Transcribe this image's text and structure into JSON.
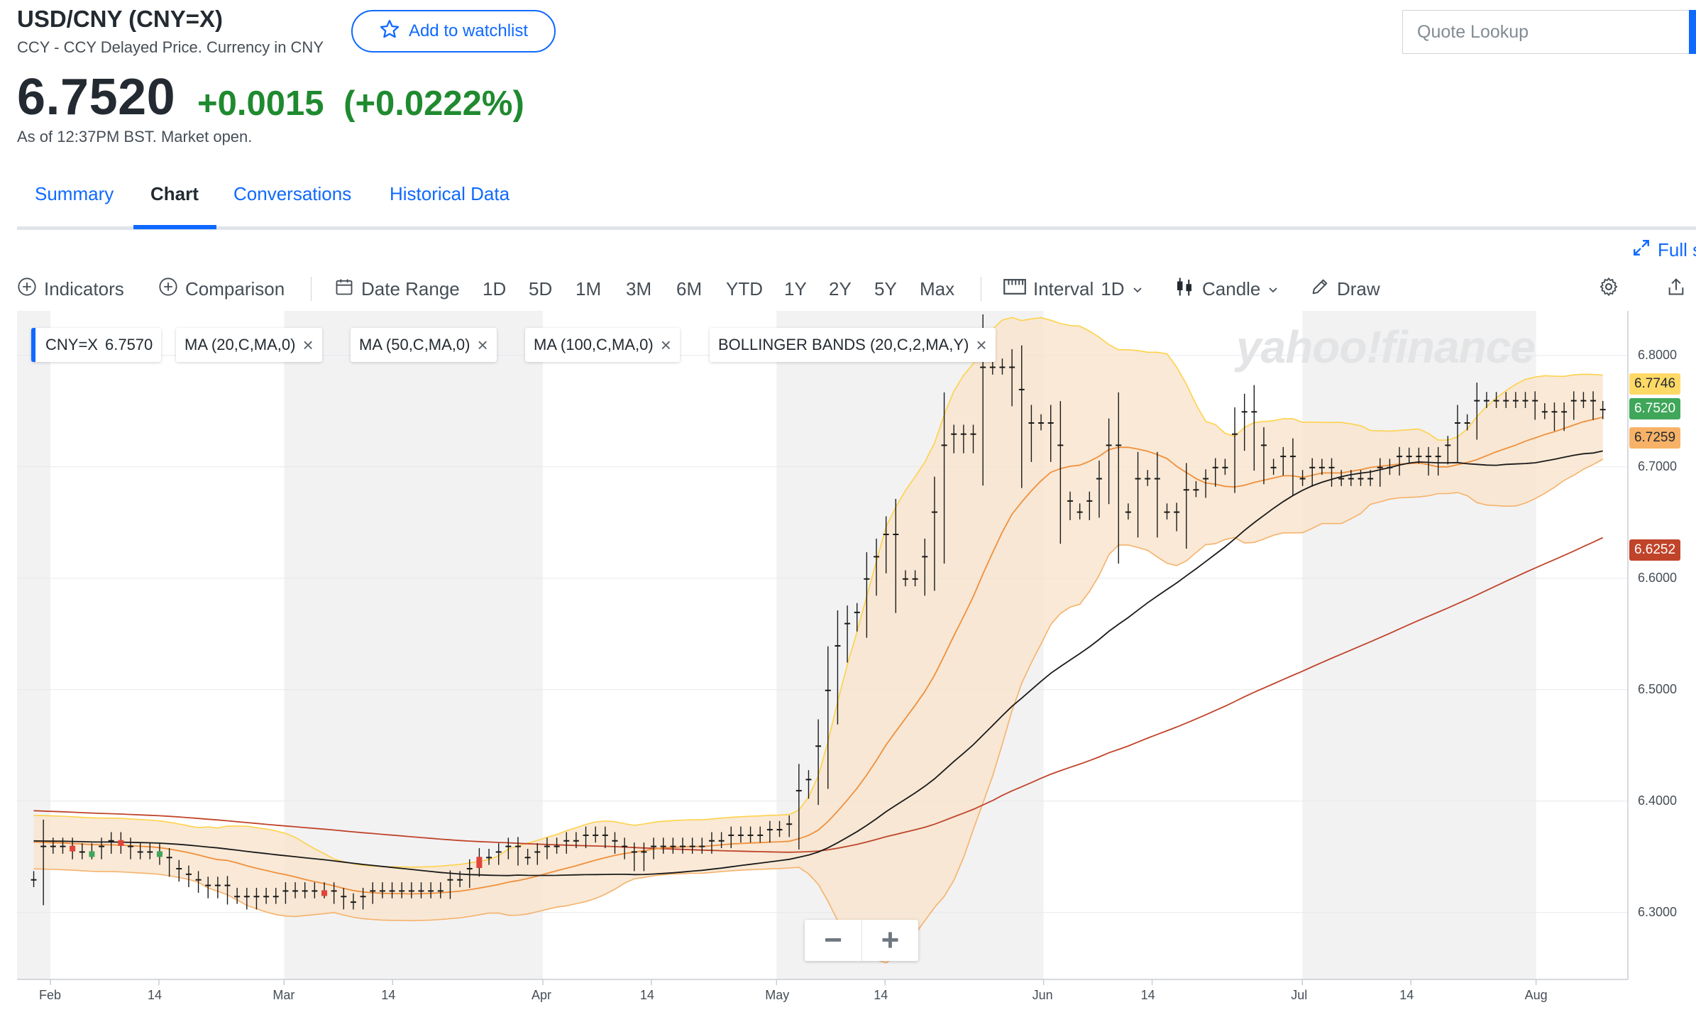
{
  "header": {
    "title": "USD/CNY (CNY=X)",
    "subtitle": "CCY - CCY Delayed Price. Currency in CNY",
    "watchlist_label": "Add to watchlist",
    "price": "6.7520",
    "change": "+0.0015",
    "change_pct": "(+0.0222%)",
    "as_of": "As of 12:37PM BST. Market open.",
    "search_placeholder": "Quote Lookup"
  },
  "tabs": [
    {
      "label": "Summary",
      "active": false
    },
    {
      "label": "Chart",
      "active": true
    },
    {
      "label": "Conversations",
      "active": false
    },
    {
      "label": "Historical Data",
      "active": false
    }
  ],
  "fullscreen_label": "Full s",
  "toolbar": {
    "indicators": "Indicators",
    "comparison": "Comparison",
    "date_range": "Date Range",
    "ranges": [
      "1D",
      "5D",
      "1M",
      "3M",
      "6M",
      "YTD",
      "1Y",
      "2Y",
      "5Y",
      "Max"
    ],
    "interval_label": "Interval",
    "interval_value": "1D",
    "chart_type": "Candle",
    "draw": "Draw"
  },
  "chips": {
    "symbol": "CNY=X",
    "symbol_value": "6.7570",
    "ma20": "MA (20,C,MA,0)",
    "ma50": "MA (50,C,MA,0)",
    "ma100": "MA (100,C,MA,0)",
    "bollinger": "BOLLINGER BANDS (20,C,2,MA,Y)",
    "close_glyph": "×"
  },
  "watermark": "yahoo!finance",
  "zoom": {
    "minus": "−",
    "plus": "+"
  },
  "price_tags": [
    {
      "label": "6.7746",
      "value": 6.7746,
      "color": "#ffd966"
    },
    {
      "label": "6.7520",
      "value": 6.752,
      "color": "#3fa65a",
      "text_color": "#ffffff"
    },
    {
      "label": "6.7259",
      "value": 6.7259,
      "color": "#f7b267"
    },
    {
      "label": "6.6252",
      "value": 6.6252,
      "color": "#c0442a",
      "text_color": "#ffffff"
    }
  ],
  "colors": {
    "up": "#3fa65a",
    "down": "#e0443a",
    "band_fill": "#f8e3cc",
    "band_upper": "#ffd24a",
    "band_lower": "#f6b26b",
    "ma20": "#f0903c",
    "ma50": "#1a1a1a",
    "ma100": "#c0442a",
    "shade": "#f2f2f3"
  },
  "chart_data": {
    "type": "candlestick",
    "y_ticks": [
      "6.8000",
      "6.7000",
      "6.6000",
      "6.5000",
      "6.4000",
      "6.3000"
    ],
    "y_tick_values": [
      6.8,
      6.7,
      6.6,
      6.5,
      6.4,
      6.3
    ],
    "ylim": [
      6.24,
      6.84
    ],
    "x_labels": [
      "Feb",
      "14",
      "Mar",
      "14",
      "Apr",
      "14",
      "May",
      "14",
      "Jun",
      "14",
      "Jul",
      "14",
      "Aug"
    ],
    "x_label_days": [
      4,
      17,
      32,
      45,
      63,
      76,
      91,
      104,
      123,
      136,
      154,
      167,
      182
    ],
    "day_range": [
      0,
      193
    ],
    "last_close": 6.752,
    "closes": [
      6.33,
      6.36,
      6.36,
      6.36,
      6.355,
      6.355,
      6.355,
      6.36,
      6.365,
      6.36,
      6.355,
      6.355,
      6.355,
      6.35,
      6.34,
      6.335,
      6.33,
      6.325,
      6.32,
      6.325,
      6.315,
      6.315,
      6.31,
      6.315,
      6.315,
      6.315,
      6.32,
      6.32,
      6.32,
      6.32,
      6.32,
      6.315,
      6.31,
      6.31,
      6.315,
      6.32,
      6.32,
      6.32,
      6.32,
      6.32,
      6.32,
      6.32,
      6.32,
      6.33,
      6.33,
      6.34,
      6.35,
      6.35,
      6.355,
      6.36,
      6.35,
      6.35,
      6.355,
      6.36,
      6.36,
      6.365,
      6.365,
      6.37,
      6.37,
      6.365,
      6.36,
      6.355,
      6.345,
      6.355,
      6.36,
      6.36,
      6.36,
      6.36,
      6.36,
      6.36,
      6.365,
      6.365,
      6.37,
      6.37,
      6.37,
      6.37,
      6.375,
      6.375,
      6.38,
      6.41,
      6.42,
      6.45,
      6.5,
      6.54,
      6.56,
      6.57,
      6.6,
      6.62,
      6.64,
      6.6,
      6.6,
      6.6,
      6.62,
      6.66,
      6.72,
      6.73,
      6.72,
      6.73,
      6.79,
      6.79,
      6.79,
      6.77,
      6.72,
      6.74,
      6.74,
      6.72,
      6.67,
      6.66,
      6.66,
      6.67,
      6.69,
      6.72,
      6.66,
      6.66,
      6.69,
      6.69,
      6.66,
      6.66,
      6.65,
      6.68,
      6.68,
      6.69,
      6.7,
      6.7,
      6.73,
      6.75,
      6.72,
      6.7,
      6.7,
      6.71,
      6.69,
      6.69,
      6.7,
      6.7,
      6.69,
      6.69,
      6.69,
      6.69,
      6.69,
      6.7,
      6.7,
      6.71,
      6.71,
      6.71,
      6.7,
      6.71,
      6.72,
      6.74,
      6.74,
      6.76,
      6.76,
      6.76,
      6.76,
      6.76,
      6.76,
      6.75,
      6.75,
      6.74,
      6.75,
      6.76,
      6.76,
      6.75,
      6.752
    ]
  }
}
